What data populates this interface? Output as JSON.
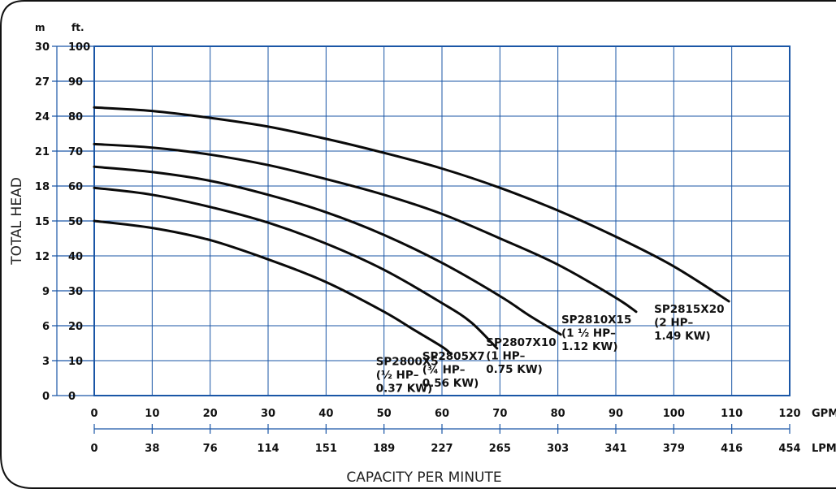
{
  "chart_data": {
    "type": "line",
    "y_units": {
      "meters": "m",
      "feet": "ft."
    },
    "y_ticks_m": [
      "30",
      "27",
      "24",
      "21",
      "18",
      "15",
      "12",
      "9",
      "6",
      "3",
      "0"
    ],
    "y_ticks_ft": [
      "100",
      "90",
      "80",
      "70",
      "60",
      "50",
      "40",
      "30",
      "20",
      "10",
      "0"
    ],
    "x_ticks_gpm": [
      "0",
      "10",
      "20",
      "30",
      "40",
      "50",
      "60",
      "70",
      "80",
      "90",
      "100",
      "110",
      "120"
    ],
    "x_ticks_lpm": [
      "0",
      "38",
      "76",
      "114",
      "151",
      "189",
      "227",
      "265",
      "303",
      "341",
      "379",
      "416",
      "454"
    ],
    "x_unit_gpm": "GPM",
    "x_unit_lpm": "LPM",
    "xlabel": "CAPACITY PER MINUTE",
    "ylabel": "TOTAL HEAD",
    "xlim": [
      0,
      120
    ],
    "ylim": [
      0,
      100
    ],
    "grid": true,
    "series": [
      {
        "name": "SP2800X5",
        "label_lines": [
          "SP2800X5",
          "(½ HP–",
          "0.37 KW)"
        ],
        "x": [
          0,
          10,
          20,
          30,
          40,
          50,
          55,
          60,
          61.5
        ],
        "y": [
          50,
          48,
          44.5,
          39,
          32.5,
          24,
          19,
          14,
          12
        ]
      },
      {
        "name": "SP2805X7",
        "label_lines": [
          "SP2805X7",
          "(¾ HP–",
          "0.56 KW)"
        ],
        "x": [
          0,
          10,
          20,
          30,
          40,
          50,
          60,
          65,
          69.5
        ],
        "y": [
          59.5,
          57.5,
          54,
          49.5,
          43.5,
          36,
          26.5,
          21,
          13.5
        ]
      },
      {
        "name": "SP2807X10",
        "label_lines": [
          "SP2807X10",
          "(1 HP–",
          "0.75 KW)"
        ],
        "x": [
          0,
          10,
          20,
          30,
          40,
          50,
          60,
          70,
          75,
          80.5
        ],
        "y": [
          65.5,
          64,
          61.5,
          57.5,
          52.5,
          46,
          38,
          28.5,
          23,
          17.5
        ]
      },
      {
        "name": "SP2810X15",
        "label_lines": [
          "SP2810X15",
          "(1 ½ HP–",
          "1.12 KW)"
        ],
        "x": [
          0,
          10,
          20,
          30,
          40,
          50,
          60,
          70,
          80,
          90,
          93.5
        ],
        "y": [
          72,
          71,
          69,
          66,
          62,
          57.5,
          52,
          45,
          37.5,
          28,
          24
        ]
      },
      {
        "name": "SP2815X20",
        "label_lines": [
          "SP2815X20",
          "(2 HP–",
          "1.49 KW)"
        ],
        "x": [
          0,
          10,
          20,
          30,
          40,
          50,
          60,
          70,
          80,
          90,
          100,
          109.5
        ],
        "y": [
          82.5,
          81.5,
          79.5,
          77,
          73.5,
          69.5,
          65,
          59.5,
          53,
          45.5,
          37,
          27
        ]
      }
    ]
  }
}
